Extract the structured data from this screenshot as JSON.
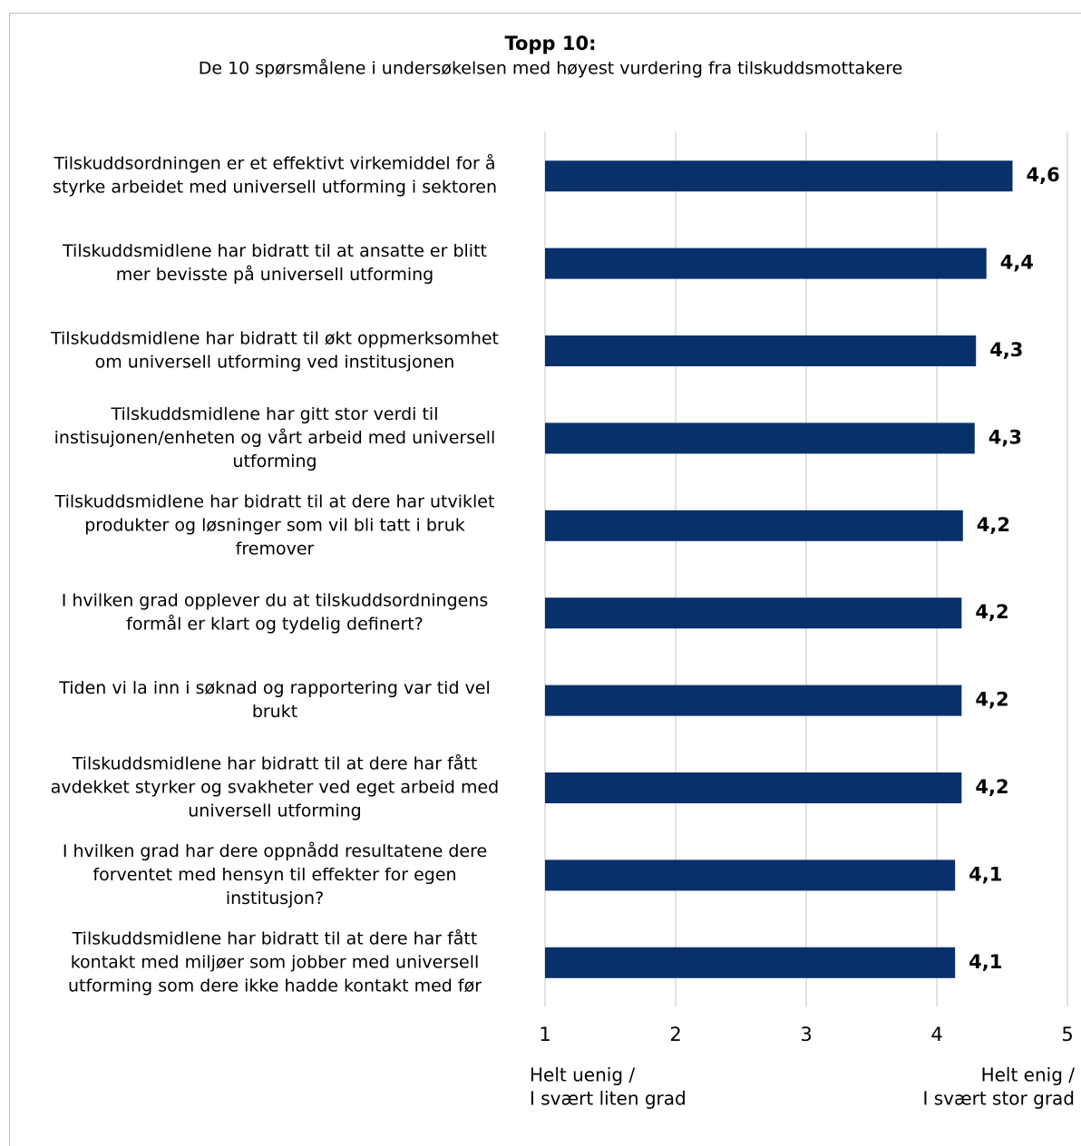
{
  "chart_data": {
    "type": "barh",
    "title": "Topp 10:",
    "subtitle": "De 10 spørsmålene i undersøkelsen med høyest vurdering fra tilskuddsmottakere",
    "categories": [
      [
        "Tilskuddsordningen er et effektivt virkemiddel for å",
        "styrke arbeidet med universell utforming i sektoren"
      ],
      [
        "Tilskuddsmidlene har bidratt til at ansatte er blitt",
        "mer bevisste på universell utforming"
      ],
      [
        "Tilskuddsmidlene har bidratt til økt oppmerksomhet",
        "om universell utforming ved institusjonen"
      ],
      [
        "Tilskuddsmidlene har gitt stor verdi til",
        "instisujonen/enheten og vårt arbeid med universell",
        "utforming"
      ],
      [
        "Tilskuddsmidlene har bidratt til at dere har utviklet",
        "produkter og løsninger som vil bli tatt i bruk",
        "fremover"
      ],
      [
        "I hvilken grad opplever du at tilskuddsordningens",
        "formål er klart og tydelig definert?"
      ],
      [
        "Tiden vi la inn i søknad og rapportering var tid vel",
        "brukt"
      ],
      [
        "Tilskuddsmidlene har bidratt til at dere har fått",
        "avdekket styrker og svakheter ved eget arbeid med",
        "universell utforming"
      ],
      [
        "I hvilken grad har dere oppnådd resultatene dere",
        "forventet med hensyn til effekter for egen",
        "institusjon?"
      ],
      [
        "Tilskuddsmidlene har bidratt til at dere har fått",
        "kontakt med miljøer som jobber med universell",
        "utforming som dere ikke hadde kontakt med før"
      ]
    ],
    "values": [
      4.58,
      4.38,
      4.3,
      4.29,
      4.2,
      4.19,
      4.19,
      4.19,
      4.14,
      4.14
    ],
    "value_labels": [
      "4,6",
      "4,4",
      "4,3",
      "4,3",
      "4,2",
      "4,2",
      "4,2",
      "4,2",
      "4,1",
      "4,1"
    ],
    "color": "#08306b",
    "xlim": [
      1,
      5
    ],
    "xticks": [
      1,
      2,
      3,
      4,
      5
    ],
    "grid": true,
    "axis_end_labels": {
      "left": [
        "Helt uenig /",
        "I svært liten grad"
      ],
      "right": [
        "Helt enig /",
        "I svært stor grad"
      ]
    }
  }
}
